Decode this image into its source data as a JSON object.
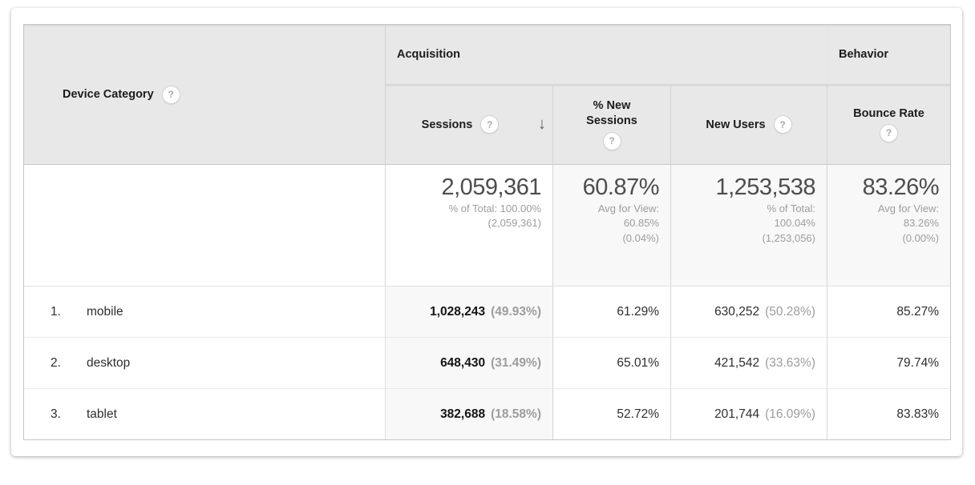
{
  "app": {
    "description": "Analytics device category report table"
  },
  "colors": {
    "header_bg": "#e8e8e8",
    "table_border": "#c6c6c6",
    "shaded_cell_bg": "#f8f8f8",
    "summary_number": "#4d4d4d",
    "muted_text": "#9d9d9d",
    "body_text": "#2e2e2e"
  },
  "icons": {
    "help": "?",
    "sort_descending": "↓"
  },
  "table": {
    "dimension_header": "Device Category",
    "group_acquisition": "Acquisition",
    "group_behavior": "Behavior",
    "col_sessions": "Sessions",
    "col_new_sessions": "% New Sessions",
    "col_new_users": "New Users",
    "col_bounce_rate": "Bounce Rate",
    "summary": {
      "sessions": {
        "value": "2,059,361",
        "line1": "% of Total: 100.00%",
        "line2": "(2,059,361)"
      },
      "new_sessions": {
        "value": "60.87%",
        "line1": "Avg for View:",
        "line2": "60.85%",
        "line3": "(0.04%)"
      },
      "new_users": {
        "value": "1,253,538",
        "line1": "% of Total:",
        "line2": "100.04%",
        "line3": "(1,253,056)"
      },
      "bounce_rate": {
        "value": "83.26%",
        "line1": "Avg for View:",
        "line2": "83.26%",
        "line3": "(0.00%)"
      }
    },
    "rows": [
      {
        "rank": "1.",
        "device": "mobile",
        "sessions": "1,028,243",
        "sessions_share": "(49.93%)",
        "pct_new_sessions": "61.29%",
        "new_users": "630,252",
        "new_users_share": "(50.28%)",
        "bounce_rate": "85.27%"
      },
      {
        "rank": "2.",
        "device": "desktop",
        "sessions": "648,430",
        "sessions_share": "(31.49%)",
        "pct_new_sessions": "65.01%",
        "new_users": "421,542",
        "new_users_share": "(33.63%)",
        "bounce_rate": "79.74%"
      },
      {
        "rank": "3.",
        "device": "tablet",
        "sessions": "382,688",
        "sessions_share": "(18.58%)",
        "pct_new_sessions": "52.72%",
        "new_users": "201,744",
        "new_users_share": "(16.09%)",
        "bounce_rate": "83.83%"
      }
    ]
  }
}
